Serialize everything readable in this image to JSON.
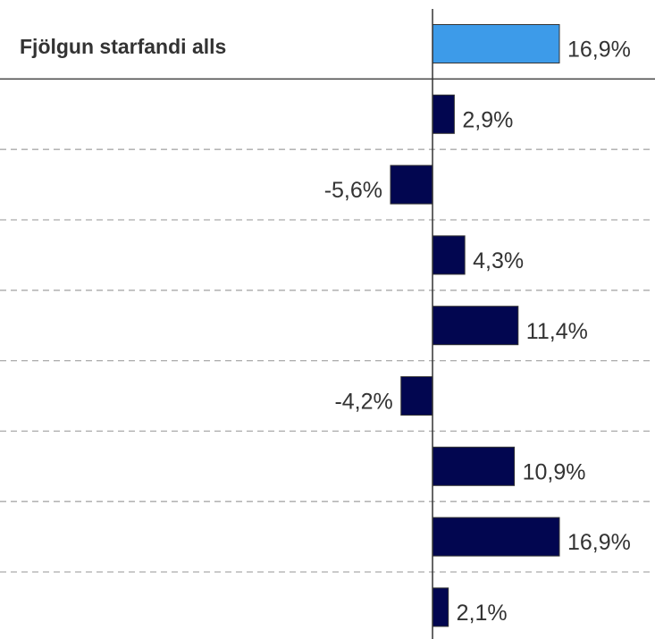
{
  "chart_data": {
    "type": "hbar",
    "categories": [
      "Fjölgun starfandi alls",
      null,
      null,
      null,
      null,
      null,
      null,
      null,
      null
    ],
    "values": [
      16.9,
      2.9,
      -5.6,
      4.3,
      11.4,
      -4.2,
      10.9,
      16.9,
      2.1
    ],
    "value_labels": [
      "16,9%",
      "2,9%",
      "-5,6%",
      "4,3%",
      "11,4%",
      "-4,2%",
      "10,9%",
      "16,9%",
      "2,1%"
    ],
    "colors": [
      "#3d9be9",
      "#020650",
      "#020650",
      "#020650",
      "#020650",
      "#020650",
      "#020650",
      "#020650",
      "#020650"
    ]
  }
}
